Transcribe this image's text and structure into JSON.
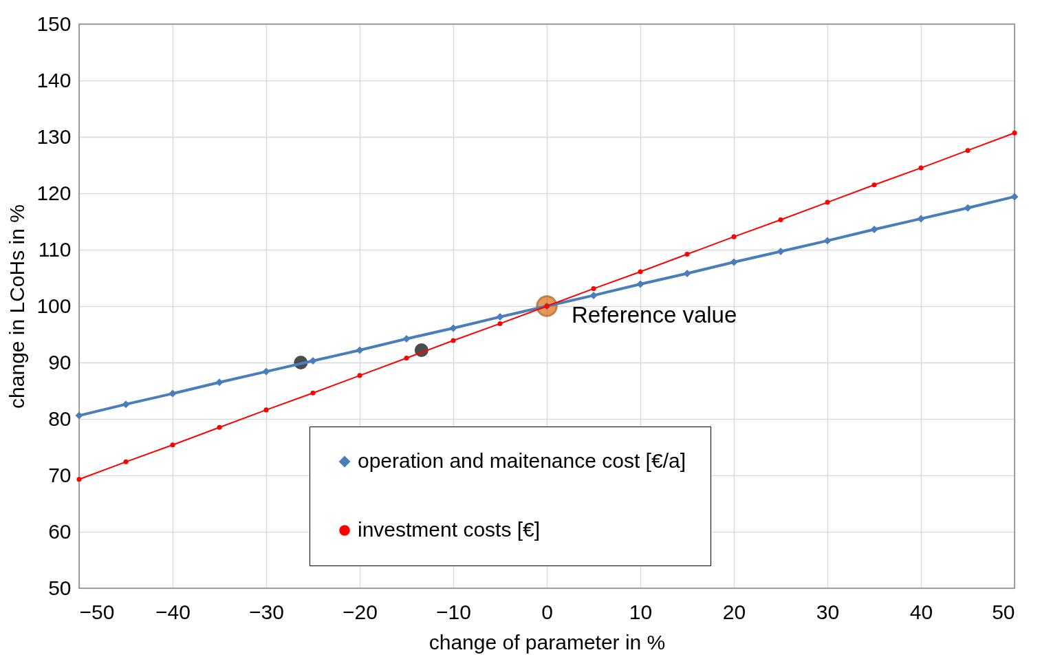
{
  "chart_data": {
    "type": "line",
    "xlabel": "change of parameter in %",
    "ylabel": "change in  LCoHs in %",
    "xlim": [
      -50,
      50
    ],
    "xticks": [
      -50,
      -40,
      -30,
      -20,
      -10,
      0,
      10,
      20,
      30,
      40,
      50
    ],
    "ylim": [
      50,
      150
    ],
    "yticks": [
      50,
      60,
      70,
      80,
      90,
      100,
      110,
      120,
      130,
      140,
      150
    ],
    "grid": true,
    "legend": "bottom",
    "series": [
      {
        "name": "operation and maitenance cost [€/a]",
        "color": "#4a7ebb",
        "marker": "diamond",
        "x": [
          -50,
          -45,
          -40,
          -35,
          -30,
          -25,
          -20,
          -15,
          -10,
          -5,
          0,
          5,
          10,
          15,
          20,
          25,
          30,
          35,
          40,
          45,
          50
        ],
        "values": [
          80.6,
          82.6,
          84.5,
          86.5,
          88.4,
          90.3,
          92.2,
          94.2,
          96.1,
          98.1,
          100,
          101.9,
          103.9,
          105.8,
          107.8,
          109.7,
          111.6,
          113.6,
          115.5,
          117.4,
          119.4
        ]
      },
      {
        "name": "investment costs [€]",
        "color": "#ff0000",
        "marker": "circle",
        "x": [
          -50,
          -45,
          -40,
          -35,
          -30,
          -25,
          -20,
          -15,
          -10,
          -5,
          0,
          5,
          10,
          15,
          20,
          25,
          30,
          35,
          40,
          45,
          50
        ],
        "values": [
          69.3,
          72.4,
          75.4,
          78.5,
          81.6,
          84.6,
          87.7,
          90.8,
          93.9,
          96.9,
          100,
          103.1,
          106.1,
          109.2,
          112.3,
          115.3,
          118.4,
          121.5,
          124.5,
          127.6,
          130.7
        ]
      },
      {
        "type": "scatter",
        "color": "#000000",
        "marker": "circle",
        "x": [
          -26.3,
          -13.4
        ],
        "values": [
          90,
          92.2
        ]
      },
      {
        "type": "scatter",
        "color": "#e36c09",
        "marker": "circle",
        "x": [
          0
        ],
        "values": [
          100
        ]
      }
    ],
    "annotations": [
      {
        "text": "Reference value",
        "x": 0,
        "y": 100
      }
    ]
  }
}
